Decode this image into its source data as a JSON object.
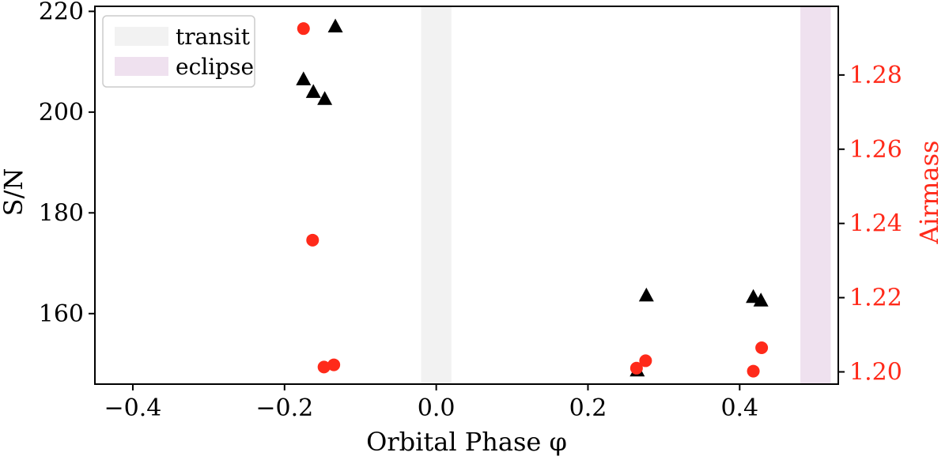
{
  "chart_data": {
    "type": "scatter",
    "xlabel": "Orbital Phase φ",
    "ylabel_left": "S/N",
    "ylabel_right": "Airmass",
    "xlim": [
      -0.45,
      0.53
    ],
    "ylim_left": [
      146.0,
      221.0
    ],
    "ylim_right": [
      1.1967,
      1.2985
    ],
    "x_ticks": [
      -0.4,
      -0.2,
      0.0,
      0.2,
      0.4
    ],
    "x_tick_labels": [
      "−0.4",
      "−0.2",
      "0.0",
      "0.2",
      "0.4"
    ],
    "y_left_ticks": [
      160,
      180,
      200,
      220
    ],
    "y_left_tick_labels": [
      "160",
      "180",
      "200",
      "220"
    ],
    "y_right_ticks": [
      1.2,
      1.22,
      1.24,
      1.26,
      1.28
    ],
    "y_right_tick_labels": [
      "1.20",
      "1.22",
      "1.24",
      "1.26",
      "1.28"
    ],
    "right_axis_color": "#ff2a1a",
    "legend": {
      "placement": "top-left",
      "entries": [
        {
          "label": "transit",
          "color": "#f2f2f2"
        },
        {
          "label": "eclipse",
          "color": "#efe1ef"
        }
      ]
    },
    "shaded_regions": [
      {
        "name": "transit",
        "x_start": -0.02,
        "x_end": 0.02,
        "color": "#f2f2f2"
      },
      {
        "name": "eclipse",
        "x_start": 0.48,
        "x_end": 0.52,
        "color": "#efe1ef"
      }
    ],
    "series": [
      {
        "axis": "left",
        "marker": "triangle",
        "color": "#000000",
        "x": [
          -0.175,
          -0.162,
          -0.147,
          -0.133,
          0.265,
          0.277,
          0.418,
          0.428
        ],
        "y": [
          206.5,
          204.0,
          202.6,
          217.0,
          148.7,
          163.6,
          163.3,
          162.6
        ]
      },
      {
        "axis": "right",
        "marker": "circle",
        "color": "#ff2a1a",
        "x": [
          -0.175,
          -0.163,
          -0.148,
          -0.135,
          0.264,
          0.276,
          0.418,
          0.429
        ],
        "y": [
          1.2925,
          1.2355,
          1.2013,
          1.2019,
          1.201,
          1.203,
          1.2002,
          1.2065
        ]
      }
    ]
  }
}
